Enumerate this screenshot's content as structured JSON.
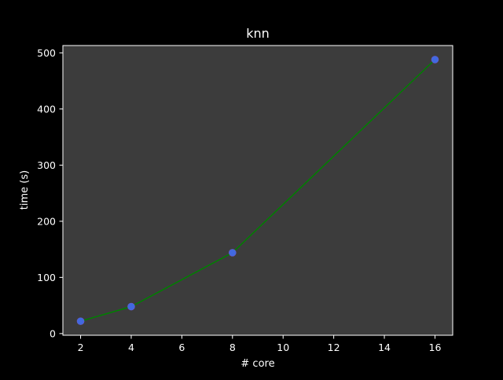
{
  "chart_data": {
    "type": "line",
    "title": "knn",
    "xlabel": "# core",
    "ylabel": "time (s)",
    "x": [
      2,
      4,
      8,
      16
    ],
    "series": [
      {
        "values": [
          22,
          48,
          144,
          488
        ]
      }
    ],
    "xlim": [
      1.3,
      16.7
    ],
    "ylim": [
      -3,
      513
    ],
    "xticks": [
      2,
      4,
      6,
      8,
      10,
      12,
      14,
      16
    ],
    "yticks": [
      0,
      100,
      200,
      300,
      400,
      500
    ],
    "grid": false,
    "legend": "none",
    "colors": {
      "figure_background": "#000000",
      "plot_background": "#3c3c3c",
      "line": "#008000",
      "marker": "#4169e1",
      "axes": "#ffffff",
      "text": "#ffffff"
    }
  }
}
